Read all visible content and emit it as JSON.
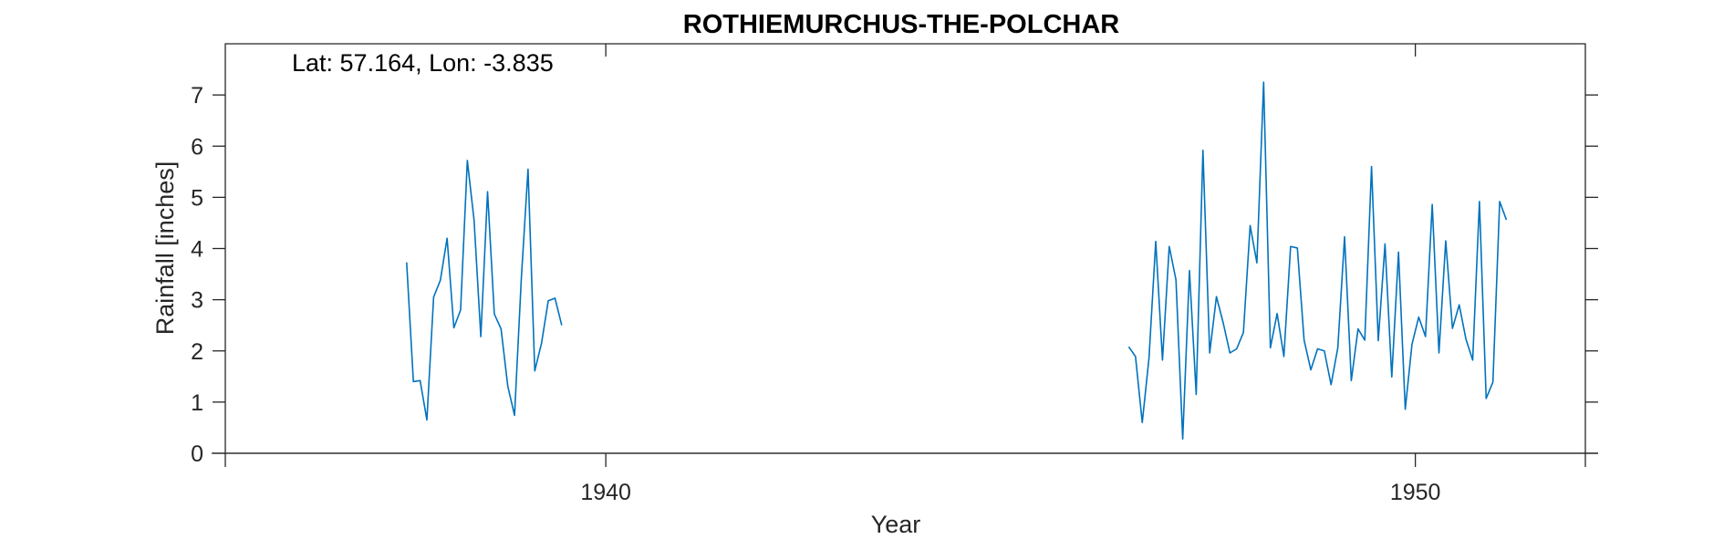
{
  "chart_data": {
    "type": "line",
    "title": "ROTHIEMURCHUS-THE-POLCHAR",
    "annotation": "Lat: 57.164, Lon: -3.835",
    "xlabel": "Year",
    "ylabel": "Rainfall [inches]",
    "xlim": [
      1935.3,
      1952.1
    ],
    "ylim": [
      0,
      8
    ],
    "yticks": [
      0,
      1,
      2,
      3,
      4,
      5,
      6,
      7
    ],
    "xticks": [
      1940,
      1950
    ],
    "line_color": "#0072bd",
    "grid": false,
    "segments": [
      {
        "x_start": 1937.54,
        "x_step": 0.0833,
        "values": [
          3.73,
          1.4,
          1.42,
          0.65,
          3.05,
          3.38,
          4.2,
          2.45,
          2.8,
          5.72,
          4.55,
          2.28,
          5.11,
          2.72,
          2.43,
          1.31,
          0.74,
          3.4,
          5.55,
          1.61,
          2.15,
          2.98,
          3.03,
          2.5
        ]
      },
      {
        "x_start": 1946.46,
        "x_step": 0.0833,
        "values": [
          2.08,
          1.89,
          0.6,
          1.86,
          4.14,
          1.82,
          4.04,
          3.39,
          0.28,
          3.57,
          1.15,
          5.92,
          1.96,
          3.06,
          2.55,
          1.96,
          2.04,
          2.36,
          4.45,
          3.72,
          7.25,
          2.06,
          2.73,
          1.89,
          4.04,
          4.01,
          2.21,
          1.63,
          2.04,
          2.0,
          1.34,
          2.06,
          4.23,
          1.42,
          2.43,
          2.21,
          5.6,
          2.2,
          4.09,
          1.49,
          3.93,
          0.86,
          2.13,
          2.66,
          2.28,
          4.86,
          1.96,
          4.15,
          2.44,
          2.9,
          2.23,
          1.82,
          4.92,
          1.07,
          1.39,
          4.92,
          4.56
        ]
      }
    ]
  }
}
